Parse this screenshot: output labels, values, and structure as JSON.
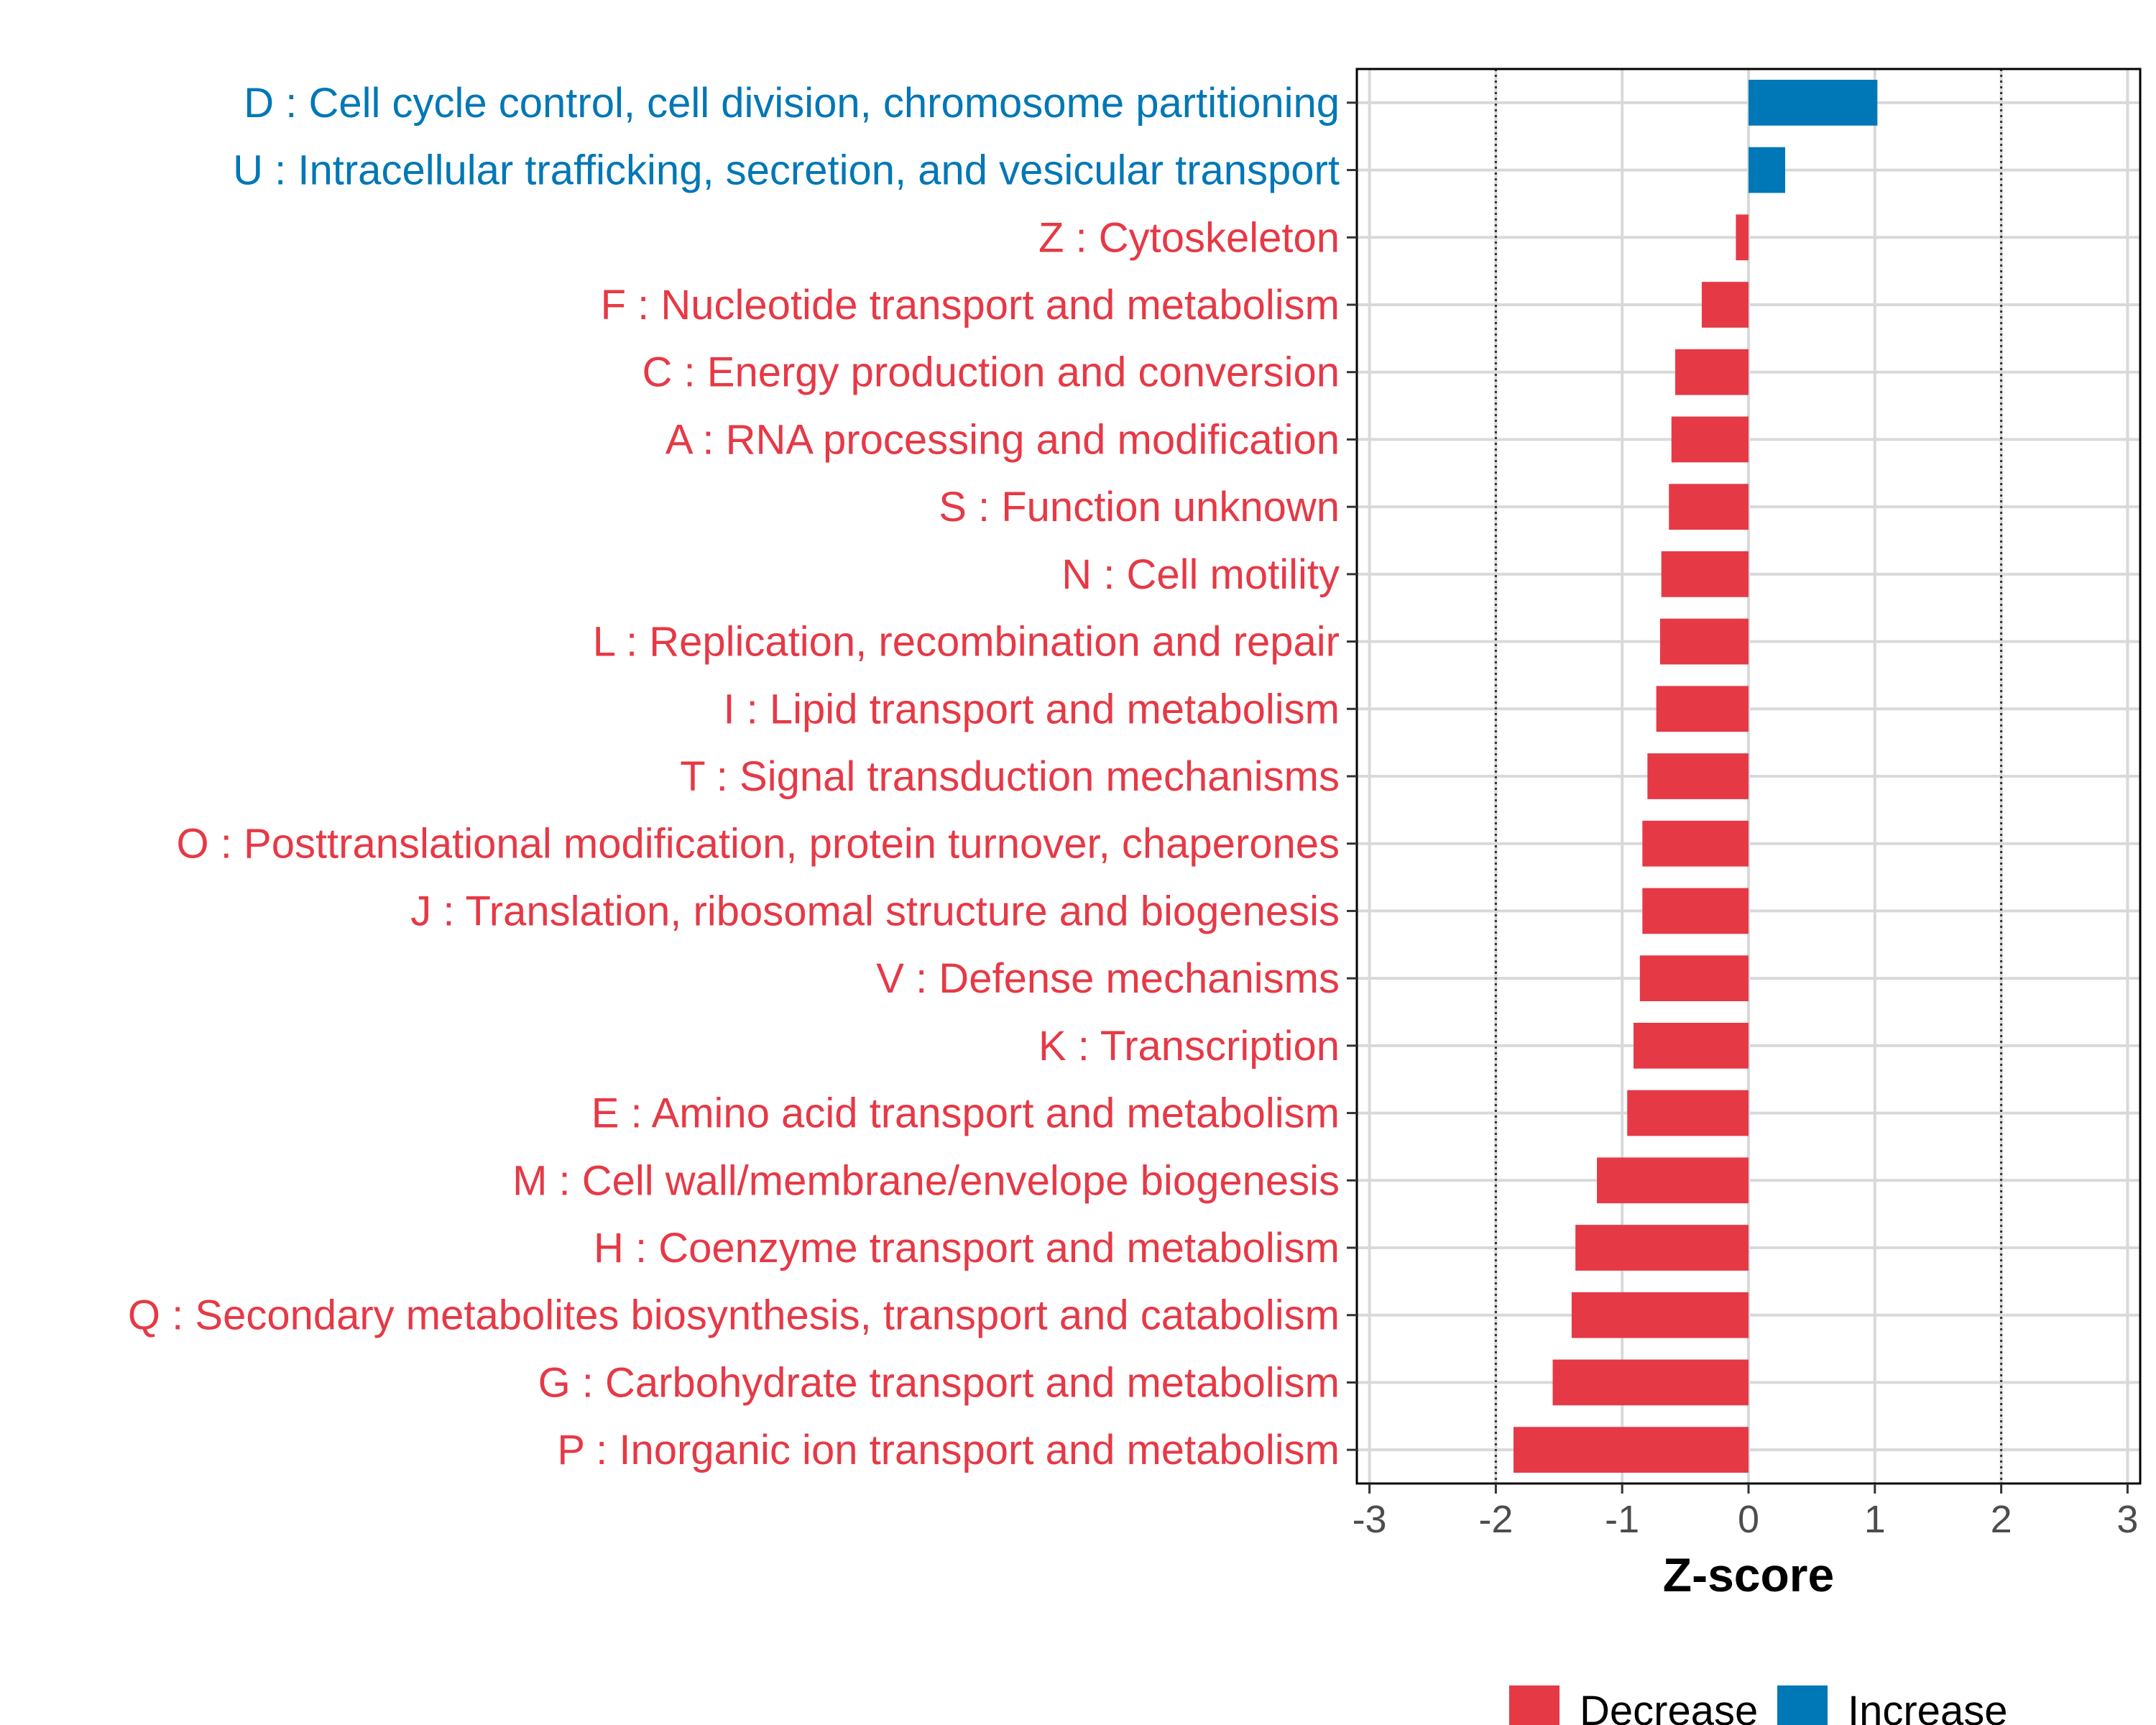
{
  "chart_data": {
    "type": "bar",
    "orientation": "horizontal",
    "title": "",
    "xlabel": "Z-score",
    "ylabel": "",
    "xlim": [
      -3.1,
      3.1
    ],
    "xticks": [
      -3,
      -2,
      -1,
      0,
      1,
      2,
      3
    ],
    "xtick_labels": [
      "-3",
      "-2",
      "-1",
      "0",
      "1",
      "2",
      "3"
    ],
    "reference_lines": [
      -2,
      2
    ],
    "grid": true,
    "colors": {
      "Decrease": "#e63946",
      "Increase": "#0077b6"
    },
    "categories": [
      "D : Cell cycle control, cell division, chromosome partitioning",
      "U : Intracellular trafficking, secretion, and vesicular transport",
      "Z : Cytoskeleton",
      "F : Nucleotide transport and metabolism",
      "C : Energy production and conversion",
      "A : RNA processing and modification",
      "S : Function unknown",
      "N : Cell motility",
      "L : Replication, recombination and repair",
      "I : Lipid transport and metabolism",
      "T : Signal transduction mechanisms",
      "O : Posttranslational modification, protein turnover, chaperones",
      "J : Translation, ribosomal structure and biogenesis",
      "V : Defense mechanisms",
      "K : Transcription",
      "E : Amino acid transport and metabolism",
      "M : Cell wall/membrane/envelope biogenesis",
      "H : Coenzyme transport and metabolism",
      "Q : Secondary metabolites biosynthesis, transport and catabolism",
      "G : Carbohydrate transport and metabolism",
      "P : Inorganic ion transport and metabolism"
    ],
    "values": [
      1.02,
      0.29,
      -0.1,
      -0.37,
      -0.58,
      -0.61,
      -0.63,
      -0.69,
      -0.7,
      -0.73,
      -0.8,
      -0.84,
      -0.84,
      -0.86,
      -0.91,
      -0.96,
      -1.2,
      -1.37,
      -1.4,
      -1.55,
      -1.86
    ],
    "groups": [
      "Increase",
      "Increase",
      "Decrease",
      "Decrease",
      "Decrease",
      "Decrease",
      "Decrease",
      "Decrease",
      "Decrease",
      "Decrease",
      "Decrease",
      "Decrease",
      "Decrease",
      "Decrease",
      "Decrease",
      "Decrease",
      "Decrease",
      "Decrease",
      "Decrease",
      "Decrease",
      "Decrease"
    ],
    "legend": {
      "position": "bottom",
      "entries": [
        {
          "name": "Decrease",
          "color": "#e63946"
        },
        {
          "name": "Increase",
          "color": "#0077b6"
        }
      ]
    }
  }
}
